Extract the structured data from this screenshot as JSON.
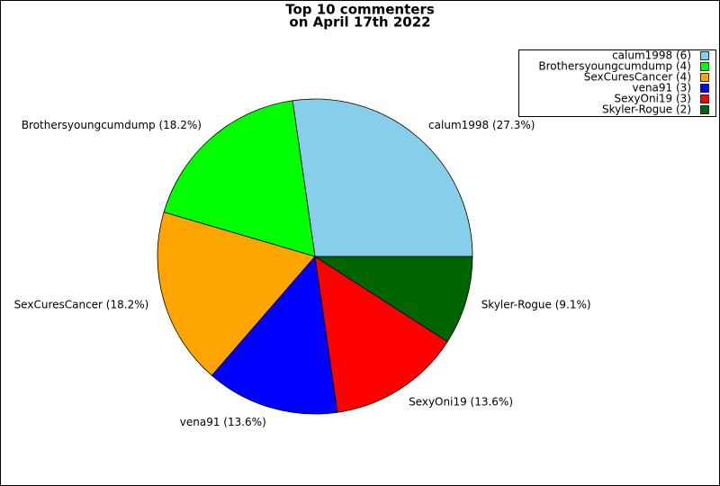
{
  "chart_data": {
    "type": "pie",
    "title": [
      "Top 10 commenters",
      "on April 17th 2022"
    ],
    "categories": [
      "calum1998 (6)",
      "Brothersyoungcumdump (4)",
      "SexCuresCancer (4)",
      "vena91 (3)",
      "SexyOni19 (3)",
      "Skyler-Rogue (2)"
    ],
    "values": [
      6,
      4,
      4,
      3,
      3,
      2
    ],
    "value_labels": [
      "calum1998 (27.3%)",
      "Brothersyoungcumdump (18.2%)",
      "SexCuresCancer (18.2%)",
      "vena91 (13.6%)",
      "SexyOni19 (13.6%)",
      "Skyler-Rogue (9.1%)"
    ],
    "colors": [
      "#87ceeb",
      "#00ff00",
      "#ffa500",
      "#0000ff",
      "#ff0000",
      "#006400"
    ],
    "legend": "upper right"
  }
}
